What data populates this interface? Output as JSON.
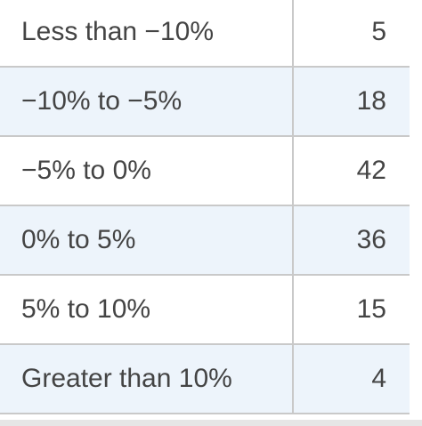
{
  "table": {
    "rows": [
      {
        "label": "Less than −10%",
        "value": "5"
      },
      {
        "label": "−10% to −5%",
        "value": "18"
      },
      {
        "label": "−5% to 0%",
        "value": "42"
      },
      {
        "label": "0% to 5%",
        "value": "36"
      },
      {
        "label": "5% to 10%",
        "value": "15"
      },
      {
        "label": "Greater than 10%",
        "value": "4"
      }
    ]
  }
}
